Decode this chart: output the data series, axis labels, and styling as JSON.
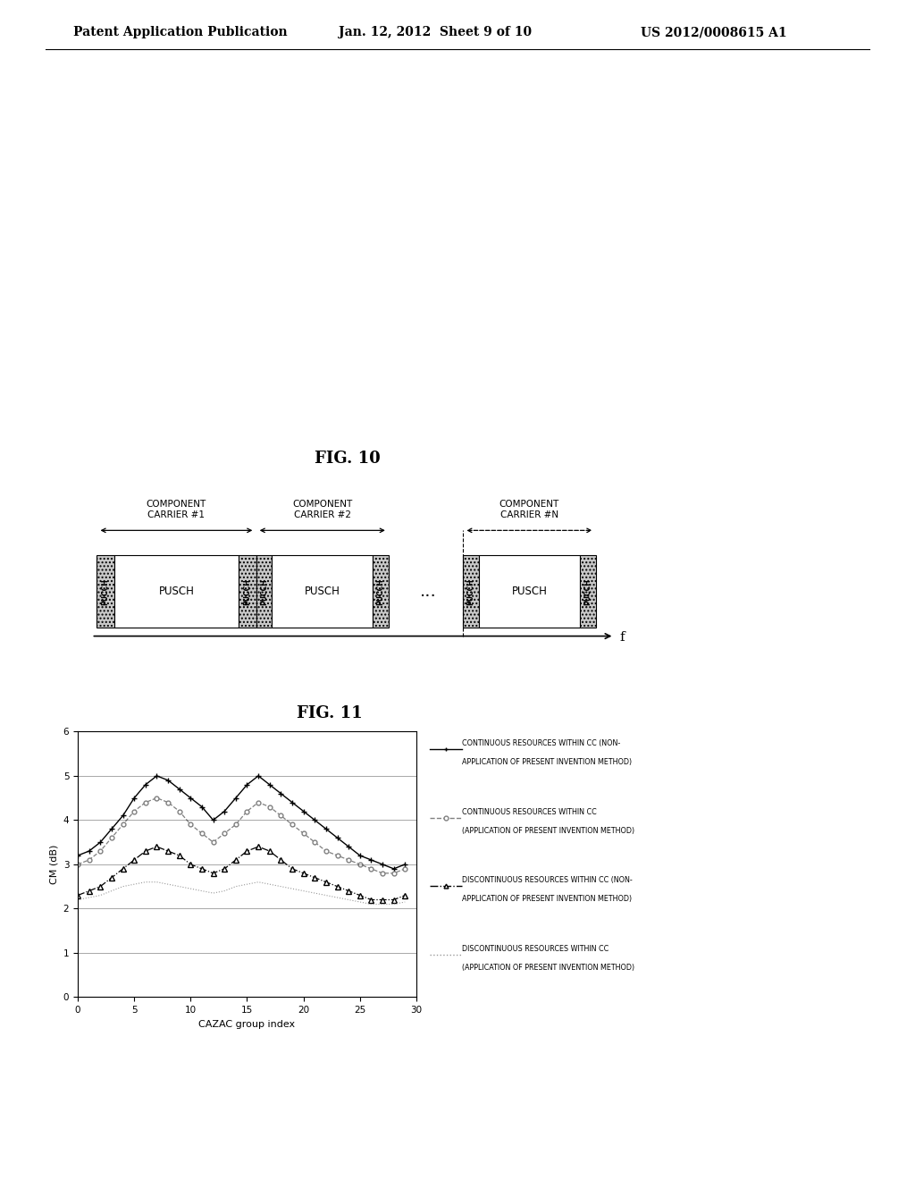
{
  "page_header_left": "Patent Application Publication",
  "page_header_center": "Jan. 12, 2012  Sheet 9 of 10",
  "page_header_right": "US 2012/0008615 A1",
  "fig10_title": "FIG. 10",
  "fig11_title": "FIG. 11",
  "fig10_labels": {
    "cc1": "COMPONENT\nCARRIER #1",
    "cc2": "COMPONENT\nCARRIER #2",
    "ccN": "COMPONENT\nCARRIER #N",
    "pusch": "PUSCH",
    "pucch": "PUCCH",
    "f_axis": "f",
    "dots": "..."
  },
  "fig11": {
    "xlabel": "CAZAC group index",
    "ylabel": "CM (dB)",
    "xlim": [
      0,
      30
    ],
    "ylim": [
      0,
      6
    ],
    "xticks": [
      0,
      5,
      10,
      15,
      20,
      25,
      30
    ],
    "yticks": [
      0,
      1,
      2,
      3,
      4,
      5,
      6
    ],
    "legend": [
      "CONTINUOUS RESOURCES WITHIN CC (NON-\nAPPLICATION OF PRESENT INVENTION METHOD)",
      "CONTINUOUS RESOURCES WITHIN CC\n(APPLICATION OF PRESENT INVENTION METHOD)",
      "DISCONTINUOUS RESOURCES WITHIN CC (NON-\nAPPLICATION OF PRESENT INVENTION METHOD)",
      "DISCONTINUOUS RESOURCES WITHIN CC\n(APPLICATION OF PRESENT INVENTION METHOD)"
    ],
    "series1_x": [
      0,
      1,
      2,
      3,
      4,
      5,
      6,
      7,
      8,
      9,
      10,
      11,
      12,
      13,
      14,
      15,
      16,
      17,
      18,
      19,
      20,
      21,
      22,
      23,
      24,
      25,
      26,
      27,
      28,
      29
    ],
    "series1_y": [
      3.2,
      3.3,
      3.5,
      3.8,
      4.1,
      4.5,
      4.8,
      5.0,
      4.9,
      4.7,
      4.5,
      4.3,
      4.0,
      4.2,
      4.5,
      4.8,
      5.0,
      4.8,
      4.6,
      4.4,
      4.2,
      4.0,
      3.8,
      3.6,
      3.4,
      3.2,
      3.1,
      3.0,
      2.9,
      3.0
    ],
    "series2_x": [
      0,
      1,
      2,
      3,
      4,
      5,
      6,
      7,
      8,
      9,
      10,
      11,
      12,
      13,
      14,
      15,
      16,
      17,
      18,
      19,
      20,
      21,
      22,
      23,
      24,
      25,
      26,
      27,
      28,
      29
    ],
    "series2_y": [
      3.0,
      3.1,
      3.3,
      3.6,
      3.9,
      4.2,
      4.4,
      4.5,
      4.4,
      4.2,
      3.9,
      3.7,
      3.5,
      3.7,
      3.9,
      4.2,
      4.4,
      4.3,
      4.1,
      3.9,
      3.7,
      3.5,
      3.3,
      3.2,
      3.1,
      3.0,
      2.9,
      2.8,
      2.8,
      2.9
    ],
    "series3_x": [
      0,
      1,
      2,
      3,
      4,
      5,
      6,
      7,
      8,
      9,
      10,
      11,
      12,
      13,
      14,
      15,
      16,
      17,
      18,
      19,
      20,
      21,
      22,
      23,
      24,
      25,
      26,
      27,
      28,
      29
    ],
    "series3_y": [
      2.3,
      2.4,
      2.5,
      2.7,
      2.9,
      3.1,
      3.3,
      3.4,
      3.3,
      3.2,
      3.0,
      2.9,
      2.8,
      2.9,
      3.1,
      3.3,
      3.4,
      3.3,
      3.1,
      2.9,
      2.8,
      2.7,
      2.6,
      2.5,
      2.4,
      2.3,
      2.2,
      2.2,
      2.2,
      2.3
    ],
    "series4_x": [
      0,
      1,
      2,
      3,
      4,
      5,
      6,
      7,
      8,
      9,
      10,
      11,
      12,
      13,
      14,
      15,
      16,
      17,
      18,
      19,
      20,
      21,
      22,
      23,
      24,
      25,
      26,
      27,
      28,
      29
    ],
    "series4_y": [
      2.2,
      2.25,
      2.3,
      2.4,
      2.5,
      2.55,
      2.6,
      2.6,
      2.55,
      2.5,
      2.45,
      2.4,
      2.35,
      2.4,
      2.5,
      2.55,
      2.6,
      2.55,
      2.5,
      2.45,
      2.4,
      2.35,
      2.3,
      2.25,
      2.2,
      2.15,
      2.1,
      2.1,
      2.1,
      2.15
    ]
  },
  "background_color": "#ffffff",
  "text_color": "#000000"
}
